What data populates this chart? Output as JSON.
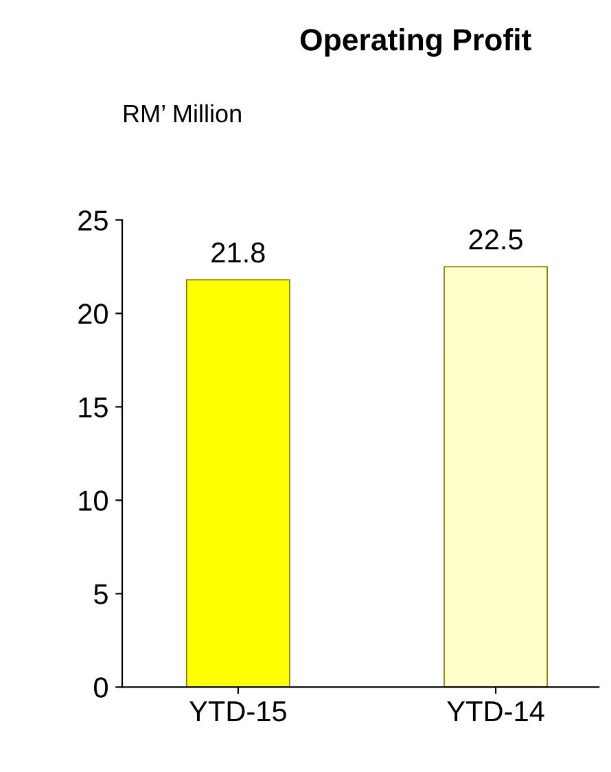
{
  "chart_data": {
    "type": "bar",
    "title": "Operating Profit",
    "ylabel": "RM’ Million",
    "categories": [
      "YTD-15",
      "YTD-14"
    ],
    "values": [
      21.8,
      22.5
    ],
    "colors": [
      "#ffff00",
      "#ffffcc"
    ],
    "ylim": [
      0,
      25
    ],
    "yticks": [
      0,
      5,
      10,
      15,
      20,
      25
    ],
    "data_labels": true,
    "grid": false,
    "legend": false
  }
}
